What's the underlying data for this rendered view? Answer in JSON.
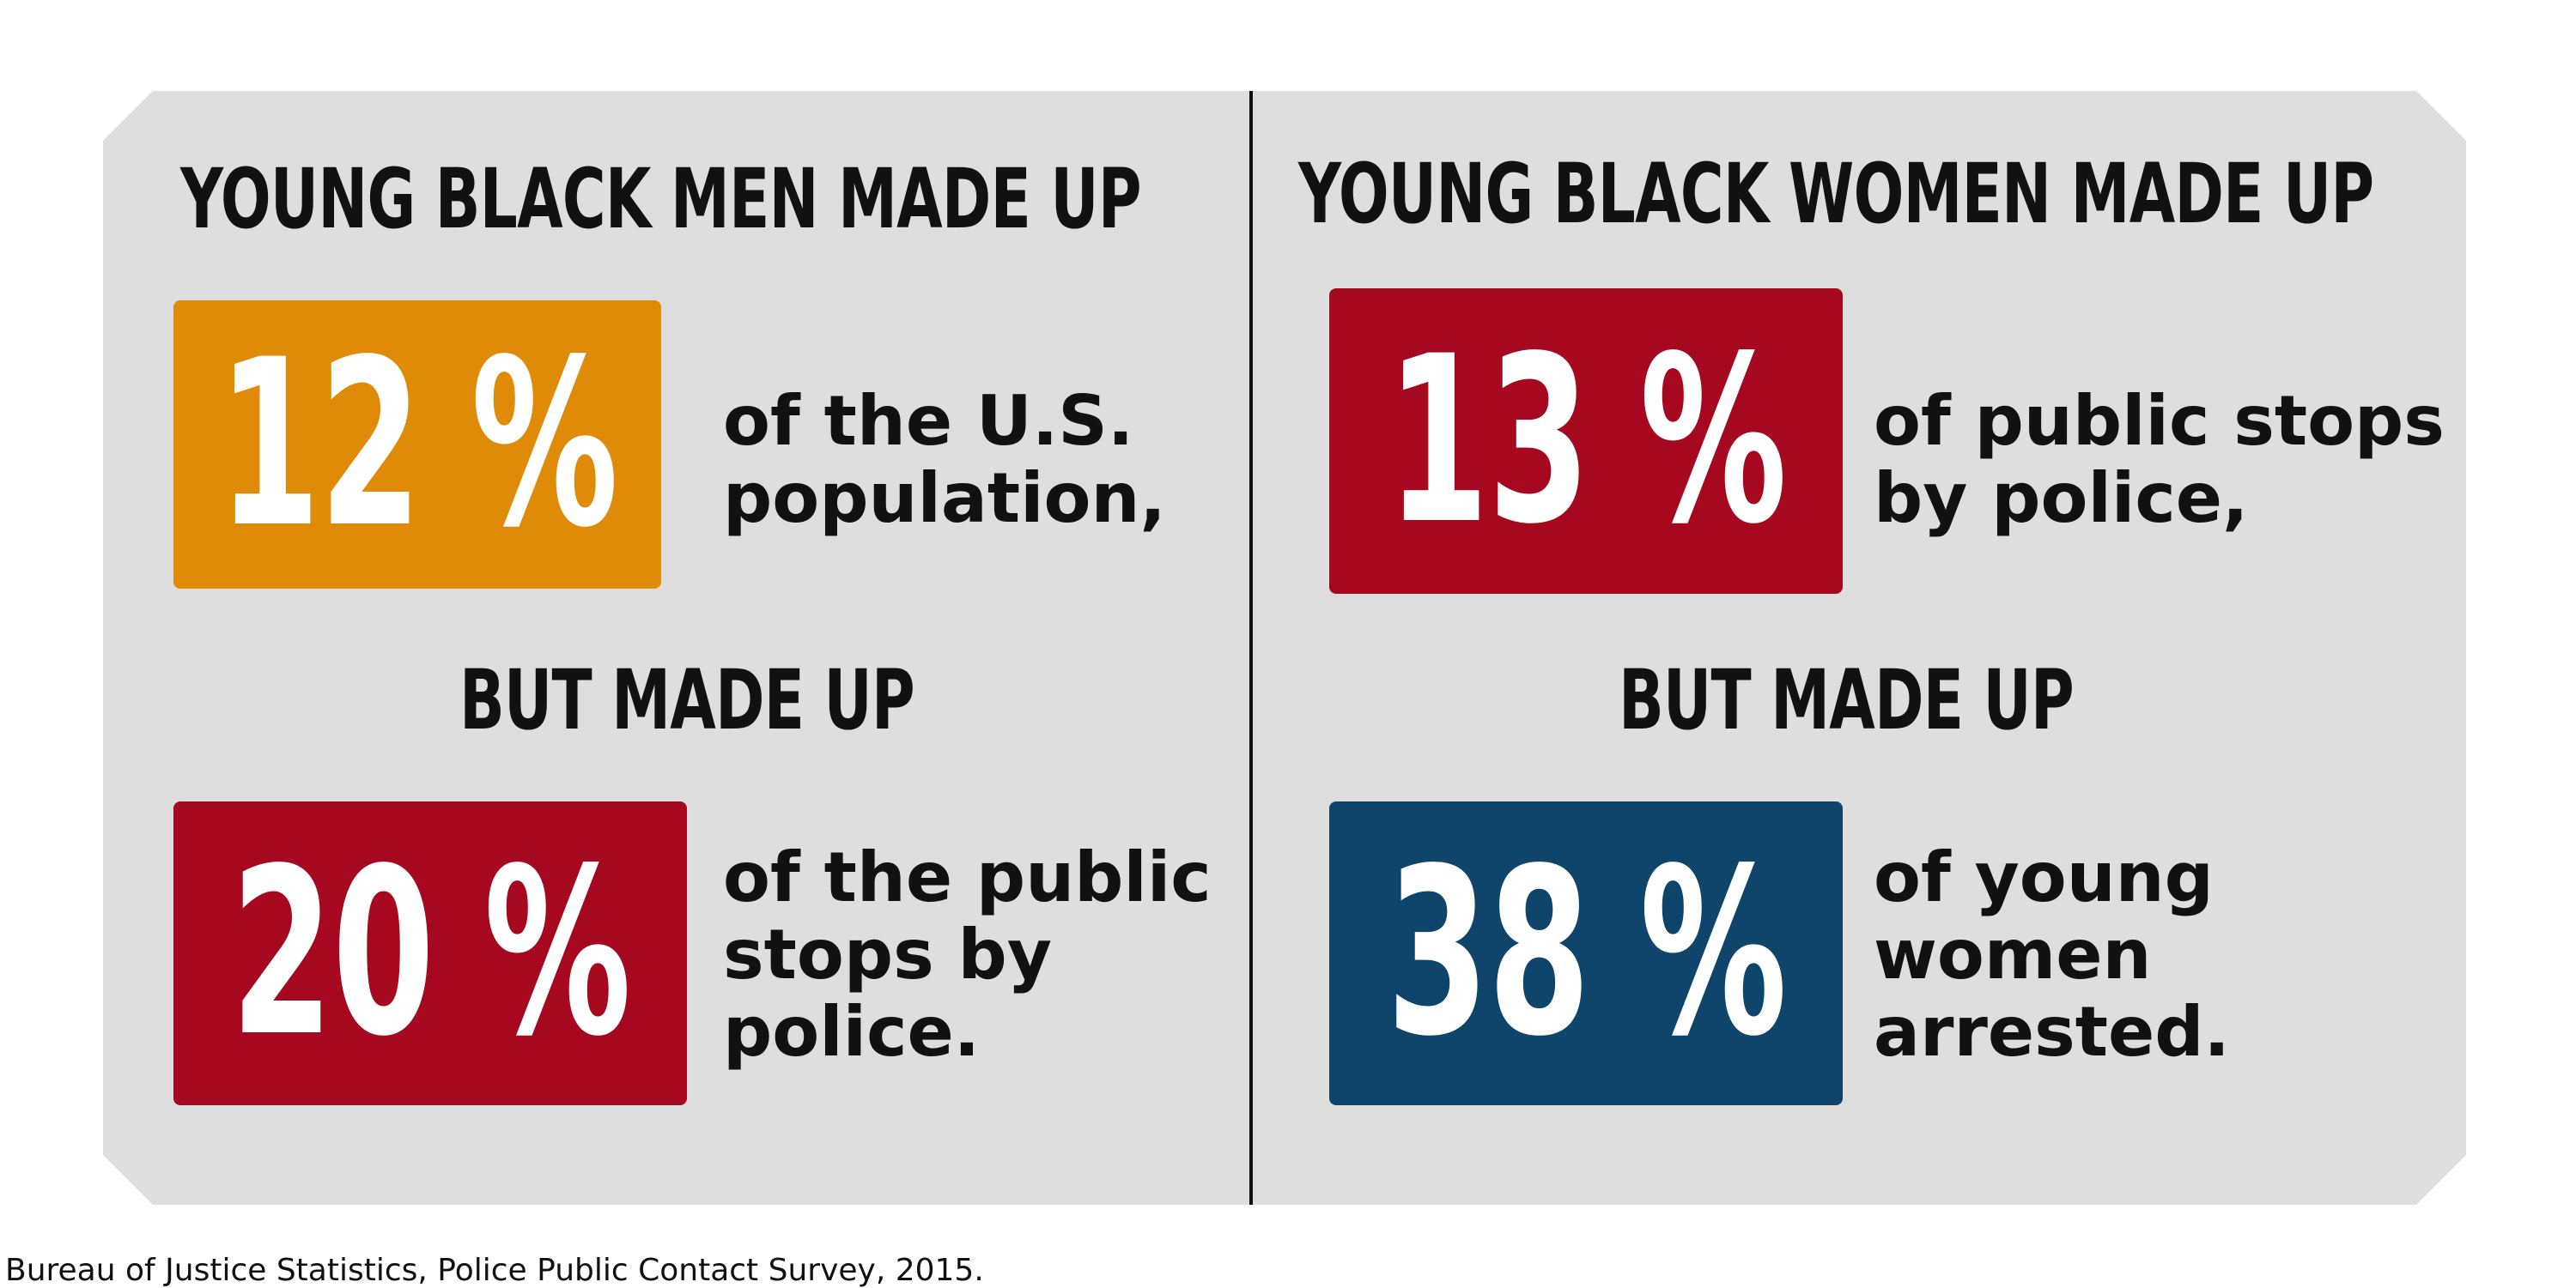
{
  "left": {
    "heading": "YOUNG BLACK MEN MADE UP",
    "stat1": {
      "value": "12 %",
      "text": "of the U.S.\npopulation,",
      "color": "#df8b07"
    },
    "but": "BUT MADE UP",
    "stat2": {
      "value": "20 %",
      "text": "of the public\nstops by\npolice.",
      "color": "#a5081f"
    }
  },
  "right": {
    "heading": "YOUNG BLACK WOMEN MADE UP",
    "stat1": {
      "value": "13 %",
      "text": "of public stops\nby police,",
      "color": "#a5081f"
    },
    "but": "BUT MADE UP",
    "stat2": {
      "value": "38 %",
      "text": "of young\nwomen\narrested.",
      "color": "#10456b"
    }
  },
  "source": "Bureau of Justice Statistics, Police Public Contact Survey, 2015.",
  "colors": {
    "panel": "#dedede",
    "text": "#111111",
    "orange": "#df8b07",
    "red": "#a5081f",
    "blue": "#10456b"
  }
}
